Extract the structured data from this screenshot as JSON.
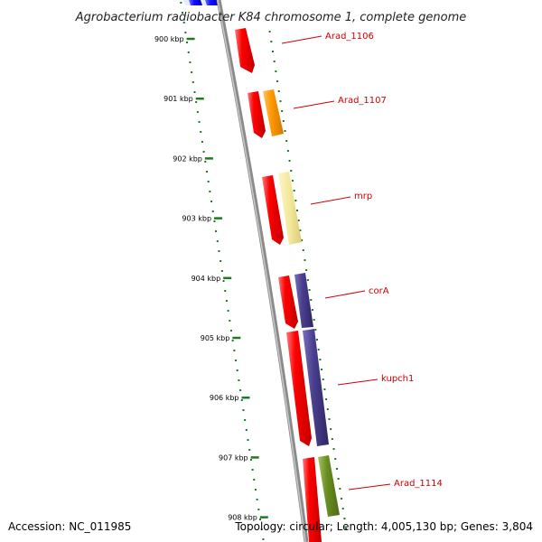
{
  "title": "Agrobacterium radiobacter K84 chromosome 1, complete genome",
  "footer": {
    "accession": "Accession: NC_011985",
    "stats": "Topology: circular; Length: 4,005,130 bp; Genes: 3,804"
  },
  "ticks": [
    {
      "label": "900 kbp"
    },
    {
      "label": "901 kbp"
    },
    {
      "label": "902 kbp"
    },
    {
      "label": "903 kbp"
    },
    {
      "label": "904 kbp"
    },
    {
      "label": "905 kbp"
    },
    {
      "label": "906 kbp"
    },
    {
      "label": "907 kbp"
    },
    {
      "label": "908 kbp"
    }
  ],
  "gene_labels": [
    {
      "text": "Arad_1106"
    },
    {
      "text": "Arad_1107"
    },
    {
      "text": "mrp"
    },
    {
      "text": "corA"
    },
    {
      "text": "kupch1"
    },
    {
      "text": "Arad_1114"
    }
  ],
  "colors": {
    "backbone": "#8a8a8a",
    "tick": "#1f7a1f",
    "gene_label": "#d00000",
    "cds_red": "#ff0000",
    "cds_orange": "#ff9900",
    "cds_pale_yellow": "#f3e79a",
    "cds_purple": "#4b3f8f",
    "cds_olive": "#6b8e23",
    "cds_blue": "#1010ff"
  }
}
